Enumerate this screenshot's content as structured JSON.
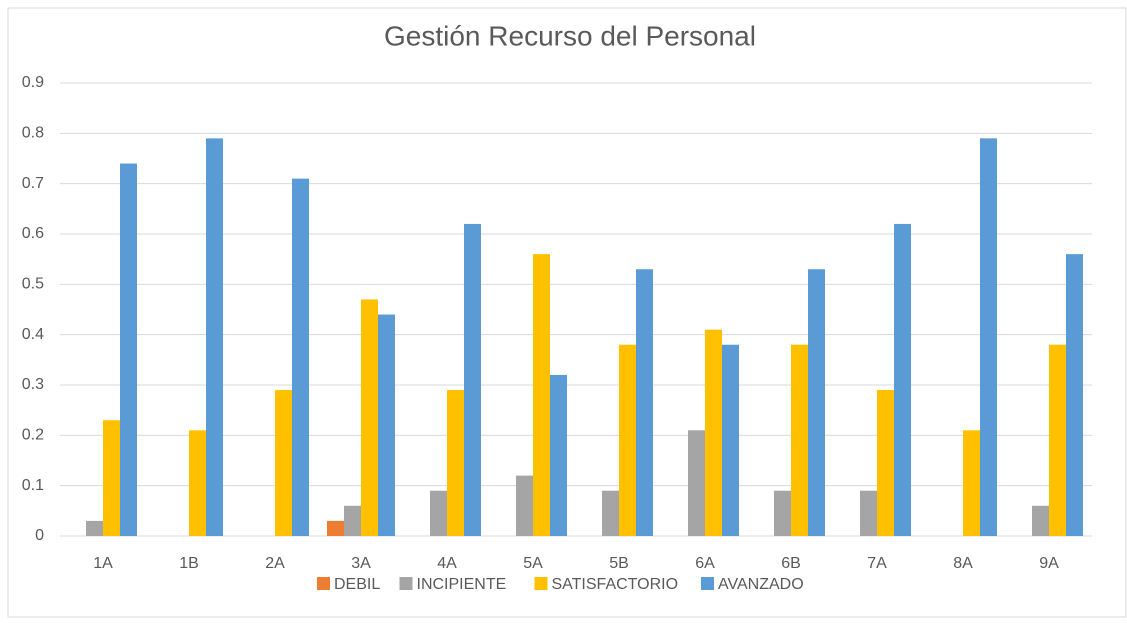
{
  "chart_data": {
    "type": "bar",
    "title": "Gestión Recurso del Personal",
    "categories": [
      "1A",
      "1B",
      "2A",
      "3A",
      "4A",
      "5A",
      "5B",
      "6A",
      "6B",
      "7A",
      "8A",
      "9A"
    ],
    "series": [
      {
        "name": "DEBIL",
        "color": "#ed7d31",
        "values": [
          0,
          0,
          0,
          0.03,
          0,
          0,
          0,
          0,
          0,
          0,
          0,
          0
        ]
      },
      {
        "name": "INCIPIENTE",
        "color": "#a5a5a5",
        "values": [
          0.03,
          0,
          0,
          0.06,
          0.09,
          0.12,
          0.09,
          0.21,
          0.09,
          0.09,
          0,
          0.06
        ]
      },
      {
        "name": "SATISFACTORIO",
        "color": "#ffc000",
        "values": [
          0.23,
          0.21,
          0.29,
          0.47,
          0.29,
          0.56,
          0.38,
          0.41,
          0.38,
          0.29,
          0.21,
          0.38
        ]
      },
      {
        "name": "AVANZADO",
        "color": "#5b9bd5",
        "values": [
          0.74,
          0.79,
          0.71,
          0.44,
          0.62,
          0.32,
          0.53,
          0.38,
          0.53,
          0.62,
          0.79,
          0.56
        ]
      }
    ],
    "ylim": [
      0,
      0.9
    ],
    "yticks": [
      0,
      0.1,
      0.2,
      0.3,
      0.4,
      0.5,
      0.6,
      0.7,
      0.8,
      0.9
    ],
    "grid": true,
    "legend": "bottom"
  }
}
